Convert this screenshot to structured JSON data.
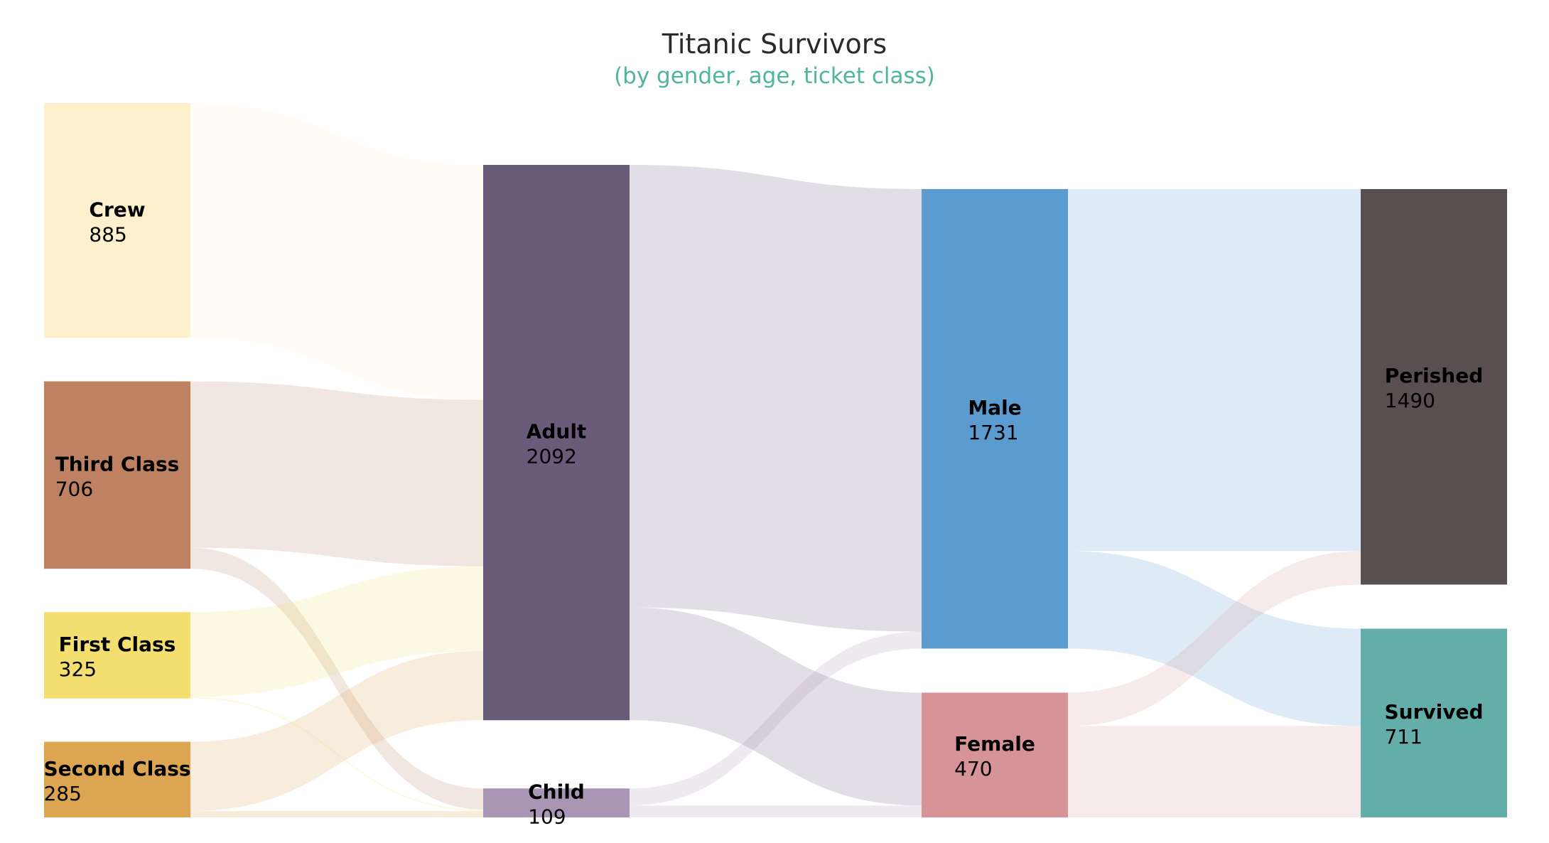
{
  "chart_data": {
    "type": "sankey",
    "title": "Titanic Survivors",
    "subtitle": "(by gender, age, ticket class)",
    "colors": {
      "subtitle": "#4fb59c"
    },
    "nodes": [
      {
        "id": "crew",
        "label": "Crew",
        "value": "885",
        "color": "#fdf0cc",
        "column": 0,
        "order": 0
      },
      {
        "id": "third",
        "label": "Third Class",
        "value": "706",
        "color": "#be8262",
        "column": 0,
        "order": 1
      },
      {
        "id": "first",
        "label": "First Class",
        "value": "325",
        "color": "#f2df6f",
        "column": 0,
        "order": 2
      },
      {
        "id": "second",
        "label": "Second Class",
        "value": "285",
        "color": "#dba552",
        "column": 0,
        "order": 3
      },
      {
        "id": "adult",
        "label": "Adult",
        "value": "2092",
        "color": "#6a5b7b",
        "column": 1,
        "order": 0
      },
      {
        "id": "child",
        "label": "Child",
        "value": "109",
        "color": "#a996b4",
        "column": 1,
        "order": 1
      },
      {
        "id": "male",
        "label": "Male",
        "value": "1731",
        "color": "#5b9bd0",
        "column": 2,
        "order": 0
      },
      {
        "id": "female",
        "label": "Female",
        "value": "470",
        "color": "#d79498",
        "column": 2,
        "order": 1
      },
      {
        "id": "perished",
        "label": "Perished",
        "value": "1490",
        "color": "#5a4f50",
        "column": 3,
        "order": 0
      },
      {
        "id": "survived",
        "label": "Survived",
        "value": "711",
        "color": "#64aea9",
        "column": 3,
        "order": 1
      }
    ],
    "links": [
      {
        "source": "crew",
        "target": "adult",
        "value": 885
      },
      {
        "source": "third",
        "target": "adult",
        "value": 627
      },
      {
        "source": "third",
        "target": "child",
        "value": 79
      },
      {
        "source": "first",
        "target": "adult",
        "value": 319
      },
      {
        "source": "first",
        "target": "child",
        "value": 6
      },
      {
        "source": "second",
        "target": "adult",
        "value": 261
      },
      {
        "source": "second",
        "target": "child",
        "value": 24
      },
      {
        "source": "adult",
        "target": "male",
        "value": 1667
      },
      {
        "source": "adult",
        "target": "female",
        "value": 425
      },
      {
        "source": "child",
        "target": "male",
        "value": 64
      },
      {
        "source": "child",
        "target": "female",
        "value": 45
      },
      {
        "source": "male",
        "target": "perished",
        "value": 1364
      },
      {
        "source": "male",
        "target": "survived",
        "value": 367
      },
      {
        "source": "female",
        "target": "perished",
        "value": 126
      },
      {
        "source": "female",
        "target": "survived",
        "value": 344
      }
    ]
  }
}
